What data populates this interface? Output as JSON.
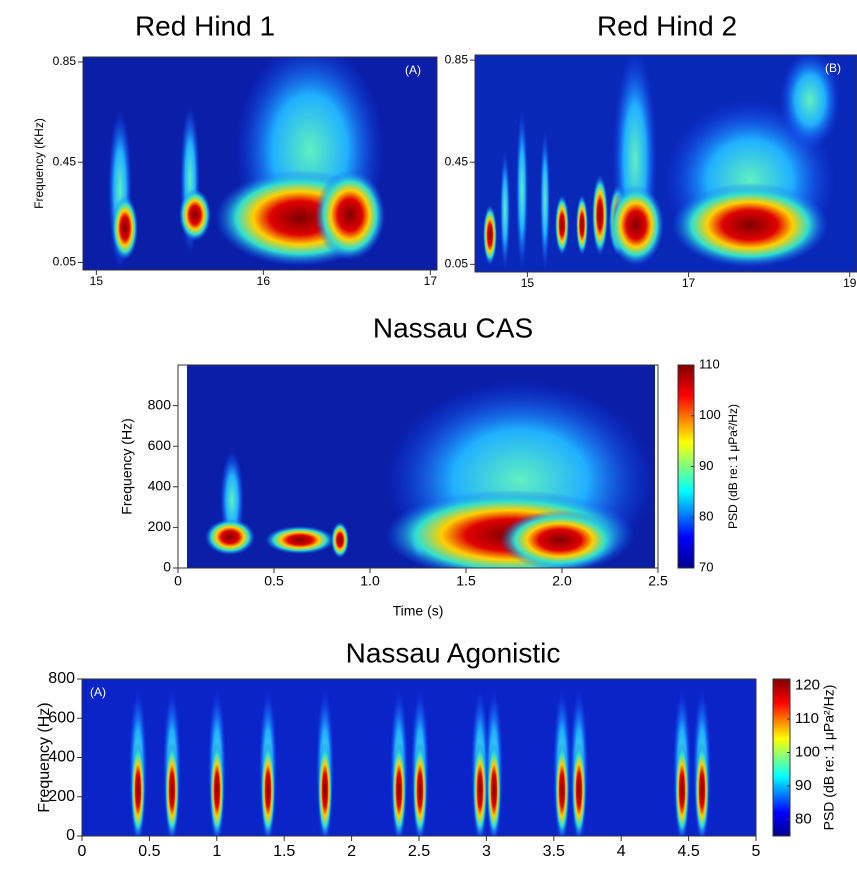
{
  "chart_data": [
    {
      "type": "spectrogram",
      "title": "Red Hind 1",
      "ylabel": "Frequency (KHz)",
      "annotation": "(A)",
      "xlim": [
        14.92,
        17.04
      ],
      "xticks": [
        15,
        16,
        17
      ],
      "ylim": [
        0.02,
        0.87
      ],
      "yticks": [
        0.05,
        0.45,
        0.85
      ]
    },
    {
      "type": "spectrogram",
      "title": "Red Hind 2",
      "annotation": "(B)",
      "xlim": [
        14.35,
        19.09
      ],
      "xticks": [
        15,
        17,
        19
      ],
      "ylim": [
        0.02,
        0.87
      ],
      "yticks": [
        0.05,
        0.45,
        0.85
      ]
    },
    {
      "type": "spectrogram",
      "title": "Nassau CAS",
      "ylabel": "Frequency (Hz)",
      "xlabel": "Time (s)",
      "xlim": [
        0,
        2.5
      ],
      "xticks": [
        0,
        0.5,
        {
          "value": 1,
          "label": "1.0"
        },
        1.5,
        {
          "value": 2,
          "label": "2.0"
        },
        2.5
      ],
      "ylim": [
        0,
        1000
      ],
      "yticks": [
        0,
        200,
        400,
        600,
        800
      ],
      "clim": [
        70,
        110
      ],
      "cticks": [
        70,
        80,
        90,
        100,
        110
      ],
      "clabel": "PSD (dB re: 1 μPa²/Hz)"
    },
    {
      "type": "spectrogram",
      "title": "Nassau Agonistic",
      "ylabel": "Frequency (Hz)",
      "annotation": "(A)",
      "xlim": [
        0,
        5
      ],
      "xticks": [
        0,
        0.5,
        1,
        1.5,
        2,
        2.5,
        3,
        3.5,
        4,
        4.5,
        5
      ],
      "ylim": [
        0,
        800
      ],
      "yticks": [
        0,
        200,
        400,
        600,
        800
      ],
      "clim": [
        75,
        122
      ],
      "cticks": [
        80,
        90,
        100,
        110,
        120
      ],
      "clabel": "PSD (dB re: 1 μPa²/Hz)"
    }
  ]
}
